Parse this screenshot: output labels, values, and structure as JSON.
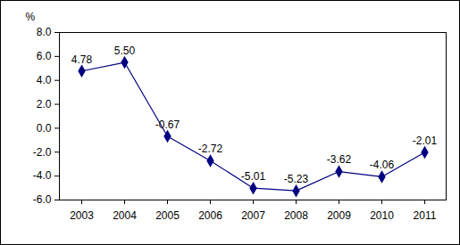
{
  "chart_data": {
    "type": "line",
    "ylabel": "%",
    "categories": [
      "2003",
      "2004",
      "2005",
      "2006",
      "2007",
      "2008",
      "2009",
      "2010",
      "2011"
    ],
    "values": [
      4.78,
      5.5,
      -0.67,
      -2.72,
      -5.01,
      -5.23,
      -3.62,
      -4.06,
      -2.01
    ],
    "value_labels": [
      "4.78",
      "5.50",
      "-0.67",
      "-2.72",
      "-5.01",
      "-5.23",
      "-3.62",
      "-4.06",
      "-2.01"
    ],
    "color": "#000080",
    "marker": "diamond",
    "data_labels": true,
    "grid": false,
    "ylim": [
      -6,
      8
    ],
    "yticks": [
      {
        "value": -6,
        "label": "-6.0"
      },
      {
        "value": -4,
        "label": "-4.0"
      },
      {
        "value": -2,
        "label": "-2.0"
      },
      {
        "value": 0,
        "label": "0.0"
      },
      {
        "value": 2,
        "label": "2.0"
      },
      {
        "value": 4,
        "label": "4.0"
      },
      {
        "value": 6,
        "label": "6.0"
      },
      {
        "value": 8,
        "label": "8.0"
      }
    ]
  }
}
